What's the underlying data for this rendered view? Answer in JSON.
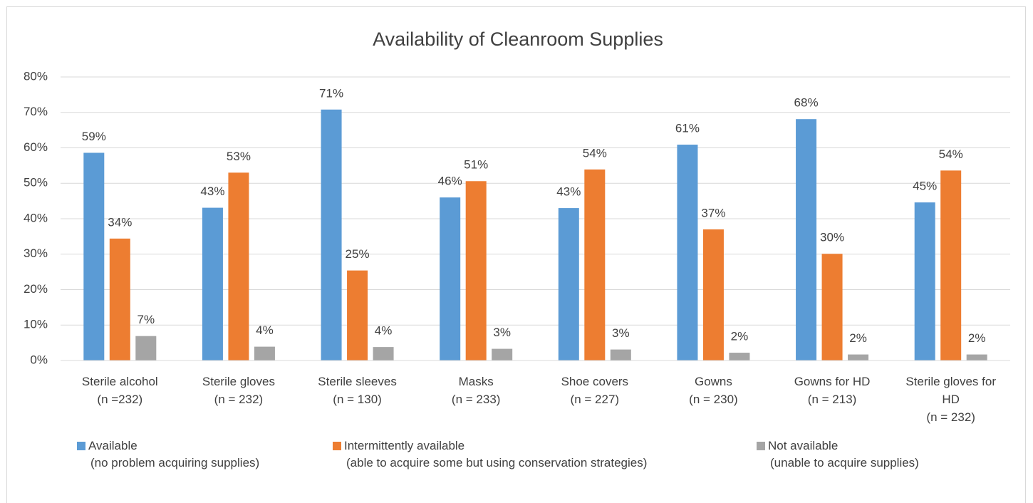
{
  "chart_data": {
    "type": "bar",
    "title": "Availability of Cleanroom Supplies",
    "categories": [
      "Sterile alcohol\n(n =232)",
      "Sterile gloves\n(n = 232)",
      "Sterile sleeves\n(n = 130)",
      "Masks\n(n = 233)",
      "Shoe covers\n(n = 227)",
      "Gowns\n(n = 230)",
      "Gowns for HD\n(n = 213)",
      "Sterile gloves for\nHD\n(n = 232)"
    ],
    "series": [
      {
        "name": "Available\n(no problem acquiring supplies)",
        "color": "#5b9bd5",
        "values": [
          58.6,
          43.1,
          70.8,
          46.0,
          43.0,
          60.9,
          68.1,
          44.6
        ],
        "value_labels": [
          "59%",
          "43%",
          "71%",
          "46%",
          "43%",
          "61%",
          "68%",
          "45%"
        ]
      },
      {
        "name": "Intermittently available\n(able to acquire some but using conservation strategies)",
        "color": "#ed7d31",
        "values": [
          34.4,
          53.0,
          25.4,
          50.6,
          53.9,
          37.0,
          30.1,
          53.6
        ],
        "value_labels": [
          "34%",
          "53%",
          "25%",
          "51%",
          "54%",
          "37%",
          "30%",
          "54%"
        ]
      },
      {
        "name": "Not available\n(unable to acquire supplies)",
        "color": "#a5a5a5",
        "values": [
          6.9,
          3.9,
          3.8,
          3.3,
          3.1,
          2.2,
          1.7,
          1.7
        ],
        "value_labels": [
          "7%",
          "4%",
          "4%",
          "3%",
          "3%",
          "2%",
          "2%",
          "2%"
        ]
      }
    ],
    "ylim": [
      0,
      80
    ],
    "yticks": [
      {
        "value": 0,
        "label": "0%"
      },
      {
        "value": 10,
        "label": "10%"
      },
      {
        "value": 20,
        "label": "20%"
      },
      {
        "value": 30,
        "label": "30%"
      },
      {
        "value": 40,
        "label": "40%"
      },
      {
        "value": 50,
        "label": "50%"
      },
      {
        "value": 60,
        "label": "60%"
      },
      {
        "value": 70,
        "label": "70%"
      },
      {
        "value": 80,
        "label": "80%"
      }
    ],
    "grid": true,
    "legend": "bottom"
  }
}
